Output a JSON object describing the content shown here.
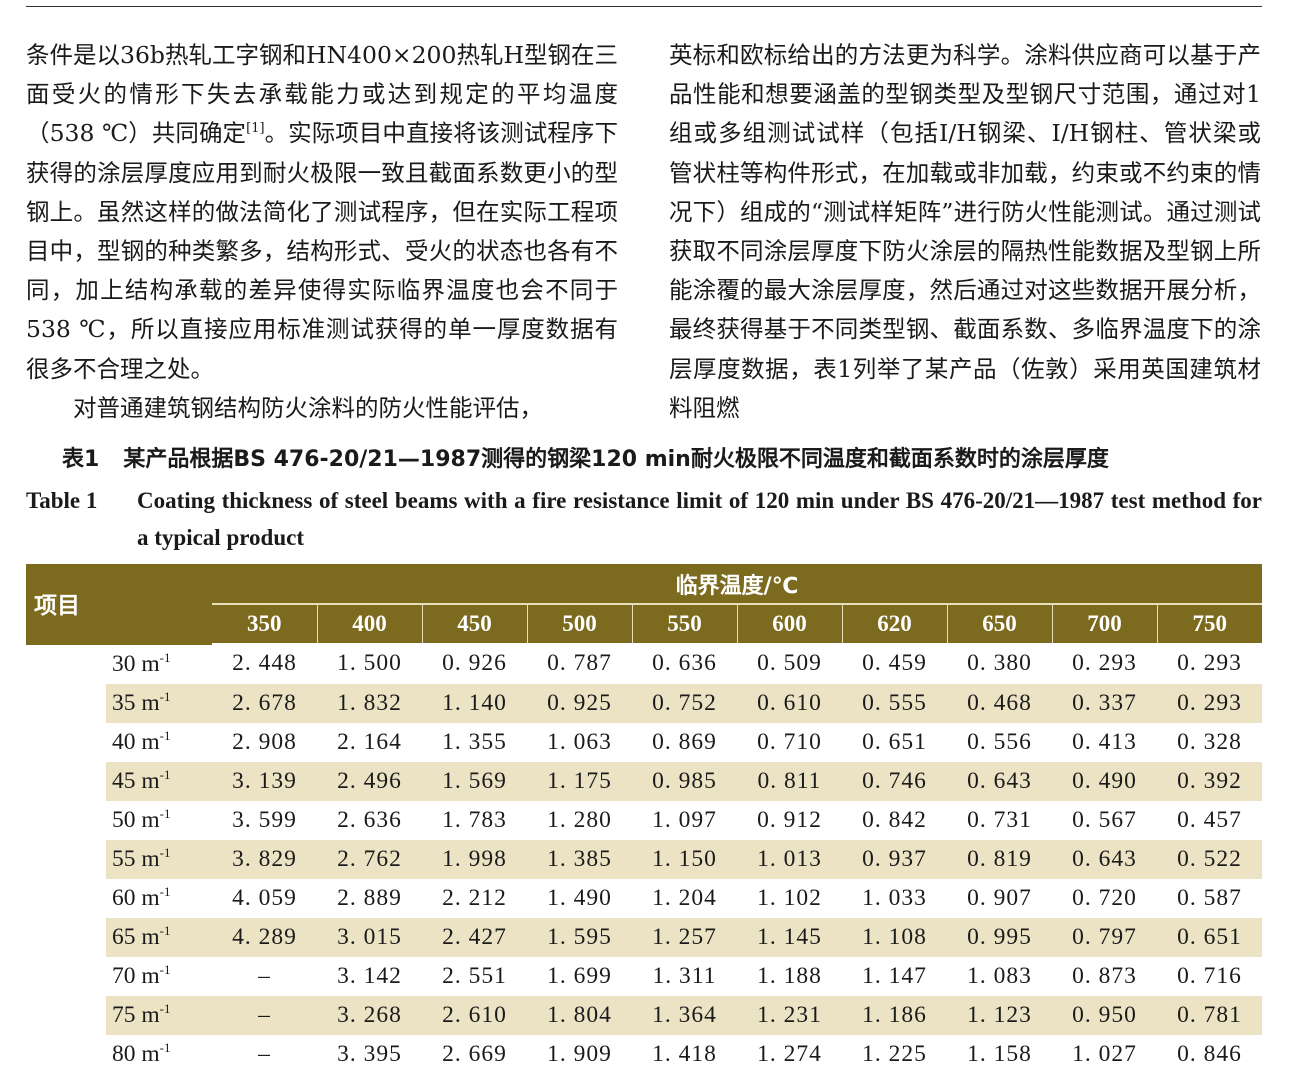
{
  "left_column": {
    "para1_before_ref": "条件是以36b热轧工字钢和HN400×200热轧H型钢在三面受火的情形下失去承载能力或达到规定的平均温度（538 ℃）共同确定",
    "para1_ref": "[1]",
    "para1_after_ref": "。实际项目中直接将该测试程序下获得的涂层厚度应用到耐火极限一致且截面系数更小的型钢上。虽然这样的做法简化了测试程序，但在实际工程项目中，型钢的种类繁多，结构形式、受火的状态也各有不同，加上结构承载的差异使得实际临界温度也会不同于538 ℃，所以直接应用标准测试获得的单一厚度数据有很多不合理之处。",
    "para2": "对普通建筑钢结构防火涂料的防火性能评估，"
  },
  "right_column": {
    "text": "英标和欧标给出的方法更为科学。涂料供应商可以基于产品性能和想要涵盖的型钢类型及型钢尺寸范围，通过对1组或多组测试试样（包括I/H钢梁、I/H钢柱、管状梁或管状柱等构件形式，在加载或非加载，约束或不约束的情况下）组成的“测试样矩阵”进行防火性能测试。通过测试获取不同涂层厚度下防火涂层的隔热性能数据及型钢上所能涂覆的最大涂层厚度，然后通过对这些数据开展分析，最终获得基于不同类型钢、截面系数、多临界温度下的涂层厚度数据，表1列举了某产品（佐敦）采用英国建筑材料阻燃"
  },
  "caption": {
    "cn_label": "表1",
    "cn_text": "某产品根据BS 476-20/21—1987测得的钢梁120 min耐火极限不同温度和截面系数时的涂层厚度",
    "en_label": "Table 1",
    "en_text": "Coating thickness of steel beams with a fire resistance limit of 120 min under BS 476-20/21—1987 test method for a typical product"
  },
  "table": {
    "item_header": "项目",
    "group_header": "临界温度/℃",
    "temperatures": [
      "350",
      "400",
      "450",
      "500",
      "550",
      "600",
      "620",
      "650",
      "700",
      "750"
    ],
    "unit_sup": "-1",
    "rows": [
      {
        "label": "30 m",
        "values": [
          "2. 448",
          "1. 500",
          "0. 926",
          "0. 787",
          "0. 636",
          "0. 509",
          "0. 459",
          "0. 380",
          "0. 293",
          "0. 293"
        ]
      },
      {
        "label": "35 m",
        "values": [
          "2. 678",
          "1. 832",
          "1. 140",
          "0. 925",
          "0. 752",
          "0. 610",
          "0. 555",
          "0. 468",
          "0. 337",
          "0. 293"
        ]
      },
      {
        "label": "40 m",
        "values": [
          "2. 908",
          "2. 164",
          "1. 355",
          "1. 063",
          "0. 869",
          "0. 710",
          "0. 651",
          "0. 556",
          "0. 413",
          "0. 328"
        ]
      },
      {
        "label": "45 m",
        "values": [
          "3. 139",
          "2. 496",
          "1. 569",
          "1. 175",
          "0. 985",
          "0. 811",
          "0. 746",
          "0. 643",
          "0. 490",
          "0. 392"
        ]
      },
      {
        "label": "50 m",
        "values": [
          "3. 599",
          "2. 636",
          "1. 783",
          "1. 280",
          "1. 097",
          "0. 912",
          "0. 842",
          "0. 731",
          "0. 567",
          "0. 457"
        ]
      },
      {
        "label": "55 m",
        "values": [
          "3. 829",
          "2. 762",
          "1. 998",
          "1. 385",
          "1. 150",
          "1. 013",
          "0. 937",
          "0. 819",
          "0. 643",
          "0. 522"
        ]
      },
      {
        "label": "60 m",
        "values": [
          "4. 059",
          "2. 889",
          "2. 212",
          "1. 490",
          "1. 204",
          "1. 102",
          "1. 033",
          "0. 907",
          "0. 720",
          "0. 587"
        ]
      },
      {
        "label": "65 m",
        "values": [
          "4. 289",
          "3. 015",
          "2. 427",
          "1. 595",
          "1. 257",
          "1. 145",
          "1. 108",
          "0. 995",
          "0. 797",
          "0. 651"
        ]
      },
      {
        "label": "70 m",
        "values": [
          "–",
          "3. 142",
          "2. 551",
          "1. 699",
          "1. 311",
          "1. 188",
          "1. 147",
          "1. 083",
          "0. 873",
          "0. 716"
        ]
      },
      {
        "label": "75 m",
        "values": [
          "–",
          "3. 268",
          "2. 610",
          "1. 804",
          "1. 364",
          "1. 231",
          "1. 186",
          "1. 123",
          "0. 950",
          "0. 781"
        ]
      },
      {
        "label": "80 m",
        "values": [
          "–",
          "3. 395",
          "2. 669",
          "1. 909",
          "1. 418",
          "1. 274",
          "1. 225",
          "1. 158",
          "1. 027",
          "0. 846"
        ]
      }
    ],
    "header_color": "#7c6a1f",
    "shade_color": "#ece3c5"
  }
}
